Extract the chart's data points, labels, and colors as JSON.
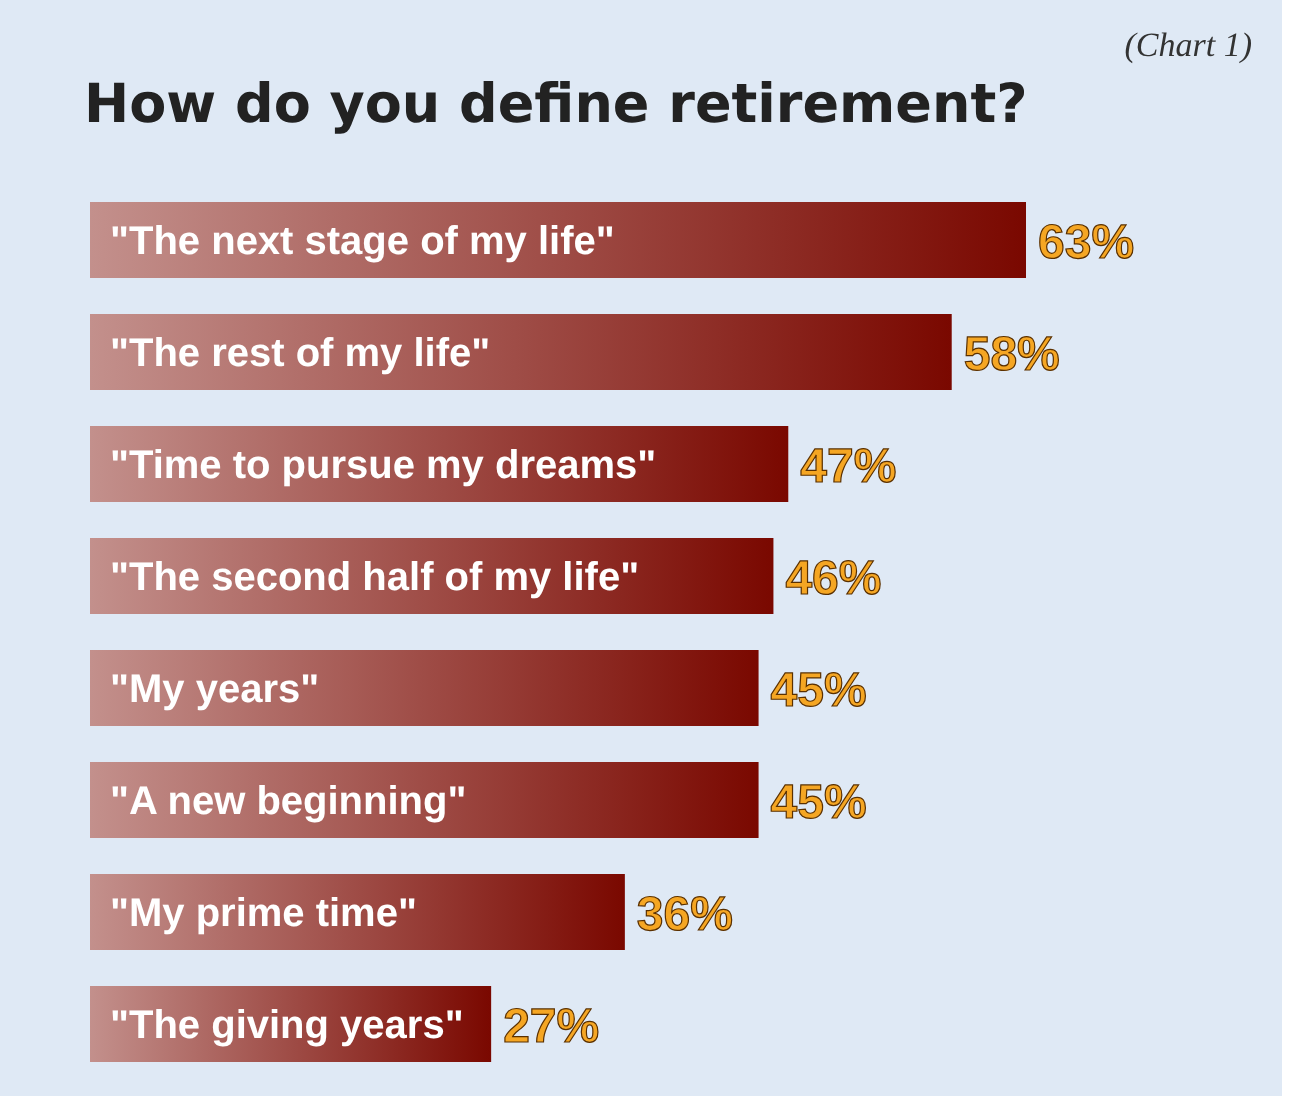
{
  "chart_data": {
    "type": "bar",
    "orientation": "horizontal",
    "title": "How do you define retirement?",
    "annotations": [
      "(Chart 1)"
    ],
    "categories": [
      "\"The next stage of my life\"",
      "\"The rest of my life\"",
      "\"Time to pursue my dreams\"",
      "\"The second half of my life\"",
      "\"My years\"",
      "\"A new beginning\"",
      "\"My prime time\"",
      "\"The giving years\""
    ],
    "values": [
      63,
      58,
      47,
      46,
      45,
      45,
      36,
      27
    ],
    "value_labels": [
      "63%",
      "58%",
      "47%",
      "46%",
      "45%",
      "45%",
      "36%",
      "27%"
    ],
    "color": "#7a0800"
  }
}
